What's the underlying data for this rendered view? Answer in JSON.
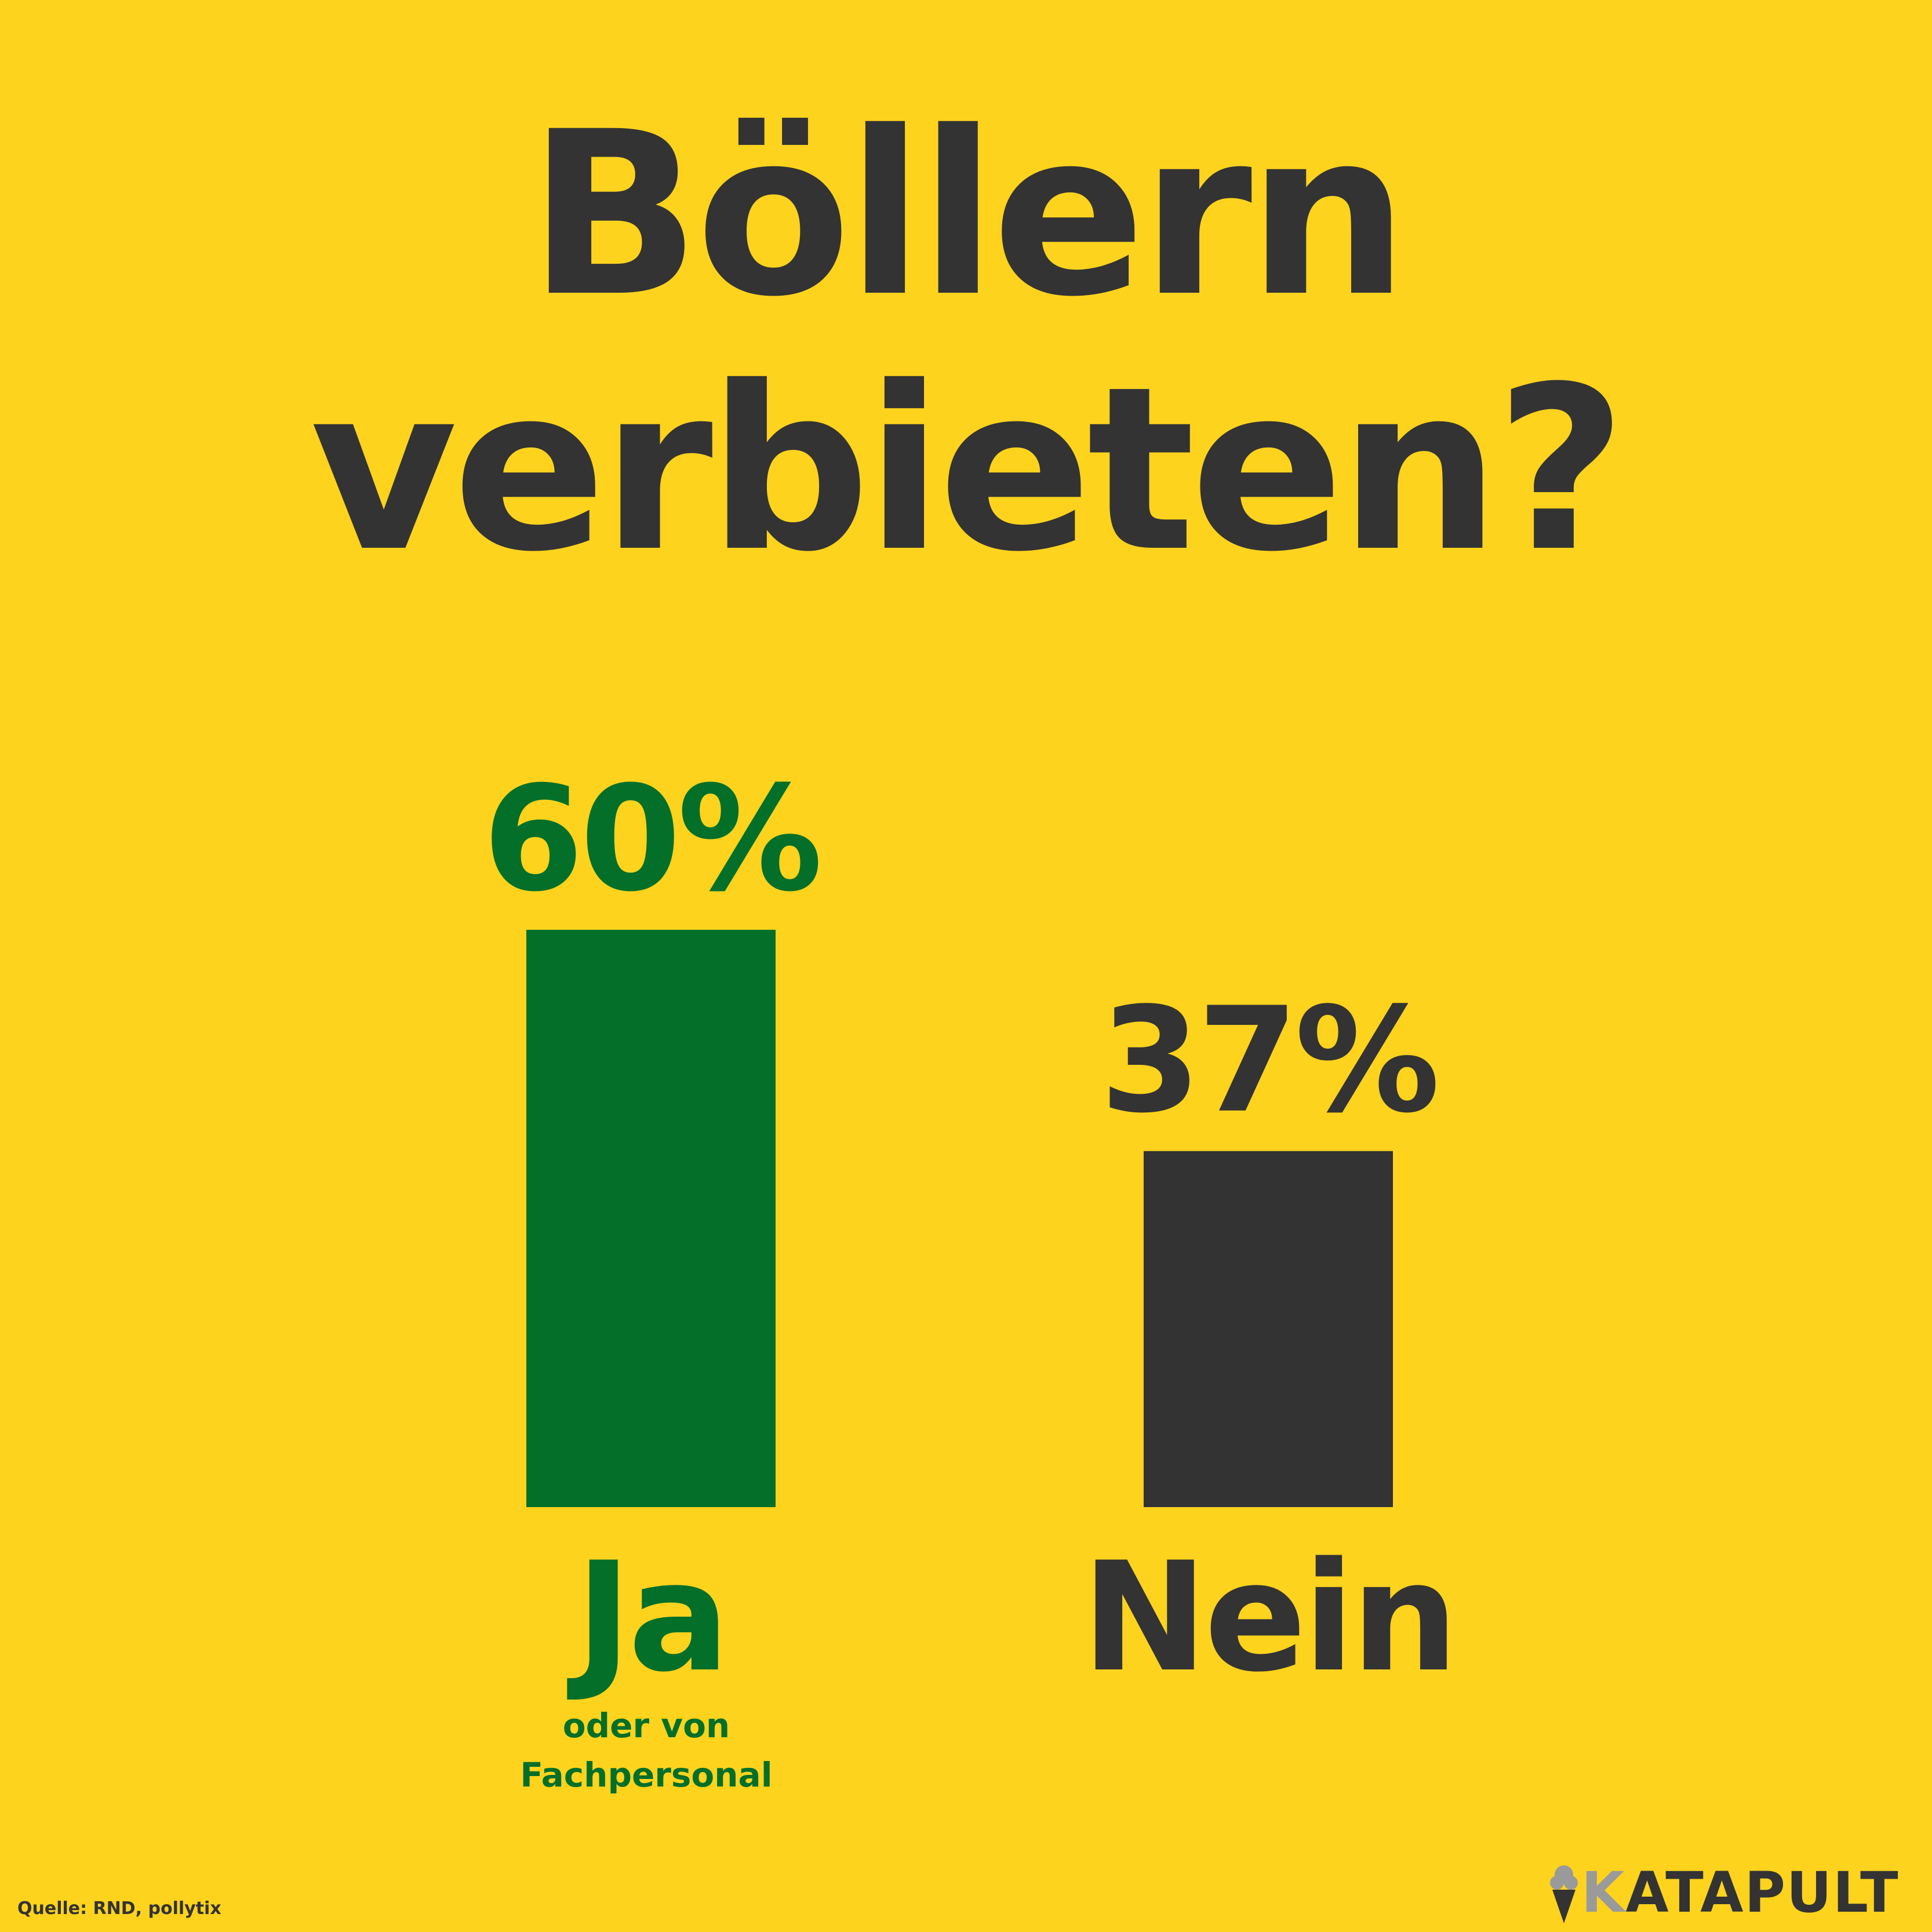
{
  "colors": {
    "background": "#FDD31E",
    "ja": "#036F29",
    "nein": "#333333",
    "title": "#333333",
    "logo_accent": "#9A9A9A"
  },
  "chart_data": {
    "type": "bar",
    "title": "Böllern verbieten?",
    "title_lines": [
      "Böllern",
      "verbieten?"
    ],
    "categories": [
      "Ja",
      "Nein"
    ],
    "values": [
      60,
      37
    ],
    "value_labels": [
      "60%",
      "37%"
    ],
    "category_notes": [
      "oder von Fachpersonal",
      ""
    ],
    "sub_labels": [
      "oder von",
      "Fachpersonal"
    ],
    "xlabel": "",
    "ylabel": "",
    "unit": "%",
    "grid": false,
    "legend": "none"
  },
  "source": "Quelle: RND, pollytix",
  "brand": {
    "name": "KATAPULT",
    "first_letter": "K",
    "rest": "ATAPULT",
    "icon": "ice-cream-cone-icon"
  }
}
